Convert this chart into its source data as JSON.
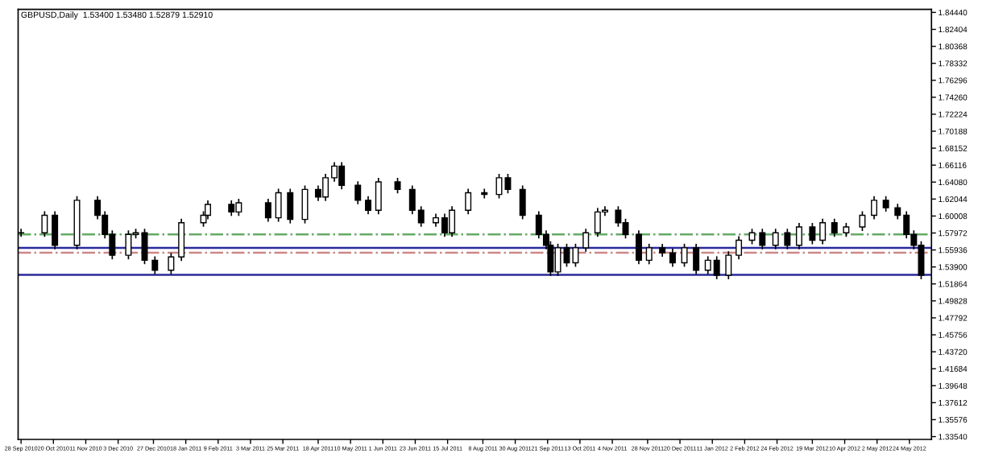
{
  "chart_data": {
    "type": "candlestick",
    "title": "GBPUSD,Daily  1.53400 1.53480 1.52879 1.52910",
    "x": [
      "2010-09-28",
      "2010-10-14",
      "2010-10-21",
      "2010-11-05",
      "2010-11-19",
      "2010-11-24",
      "2010-11-29",
      "2010-12-10",
      "2010-12-15",
      "2010-12-21",
      "2010-12-28",
      "2011-01-08",
      "2011-01-15",
      "2011-01-30",
      "2011-02-02",
      "2011-02-18",
      "2011-02-23",
      "2011-03-15",
      "2011-03-22",
      "2011-03-30",
      "2011-04-09",
      "2011-04-18",
      "2011-04-23",
      "2011-04-29",
      "2011-05-04",
      "2011-05-15",
      "2011-05-22",
      "2011-05-29",
      "2011-06-11",
      "2011-06-21",
      "2011-06-27",
      "2011-07-07",
      "2011-07-13",
      "2011-07-18",
      "2011-07-29",
      "2011-08-09",
      "2011-08-19",
      "2011-08-25",
      "2011-09-04",
      "2011-09-15",
      "2011-09-20",
      "2011-09-23",
      "2011-09-28",
      "2011-10-04",
      "2011-10-10",
      "2011-10-17",
      "2011-10-25",
      "2011-10-30",
      "2011-11-08",
      "2011-11-13",
      "2011-11-22",
      "2011-11-29",
      "2011-12-08",
      "2011-12-15",
      "2011-12-23",
      "2011-12-31",
      "2012-01-08",
      "2012-01-14",
      "2012-01-22",
      "2012-01-29",
      "2012-02-07",
      "2012-02-14",
      "2012-02-23",
      "2012-03-02",
      "2012-03-10",
      "2012-03-19",
      "2012-03-26",
      "2012-04-03",
      "2012-04-11",
      "2012-04-22",
      "2012-04-30",
      "2012-05-08",
      "2012-05-16",
      "2012-05-22",
      "2012-05-27",
      "2012-06-01"
    ],
    "ohlc": [
      [
        1.58,
        1.584,
        1.576,
        1.58
      ],
      [
        1.58,
        1.605,
        1.576,
        1.601
      ],
      [
        1.601,
        1.605,
        1.561,
        1.565
      ],
      [
        1.565,
        1.623,
        1.561,
        1.619
      ],
      [
        1.619,
        1.623,
        1.597,
        1.601
      ],
      [
        1.601,
        1.605,
        1.574,
        1.578
      ],
      [
        1.578,
        1.582,
        1.549,
        1.553
      ],
      [
        1.553,
        1.582,
        1.549,
        1.578
      ],
      [
        1.578,
        1.584,
        1.574,
        1.58
      ],
      [
        1.58,
        1.584,
        1.543,
        1.547
      ],
      [
        1.547,
        1.551,
        1.531,
        1.535
      ],
      [
        1.535,
        1.555,
        1.531,
        1.551
      ],
      [
        1.551,
        1.596,
        1.547,
        1.592
      ],
      [
        1.592,
        1.605,
        1.588,
        1.601
      ],
      [
        1.601,
        1.618,
        1.597,
        1.614
      ],
      [
        1.614,
        1.618,
        1.601,
        1.605
      ],
      [
        1.605,
        1.62,
        1.601,
        1.616
      ],
      [
        1.616,
        1.62,
        1.594,
        1.598
      ],
      [
        1.598,
        1.632,
        1.594,
        1.628
      ],
      [
        1.628,
        1.632,
        1.592,
        1.596
      ],
      [
        1.596,
        1.636,
        1.592,
        1.632
      ],
      [
        1.632,
        1.636,
        1.619,
        1.623
      ],
      [
        1.623,
        1.65,
        1.619,
        1.646
      ],
      [
        1.646,
        1.664,
        1.642,
        1.66
      ],
      [
        1.66,
        1.664,
        1.633,
        1.637
      ],
      [
        1.637,
        1.641,
        1.615,
        1.619
      ],
      [
        1.619,
        1.623,
        1.603,
        1.607
      ],
      [
        1.607,
        1.645,
        1.603,
        1.641
      ],
      [
        1.641,
        1.645,
        1.628,
        1.632
      ],
      [
        1.632,
        1.636,
        1.603,
        1.607
      ],
      [
        1.607,
        1.611,
        1.588,
        1.592
      ],
      [
        1.592,
        1.602,
        1.588,
        1.598
      ],
      [
        1.598,
        1.602,
        1.576,
        1.58
      ],
      [
        1.58,
        1.611,
        1.576,
        1.607
      ],
      [
        1.607,
        1.632,
        1.603,
        1.628
      ],
      [
        1.628,
        1.632,
        1.622,
        1.626
      ],
      [
        1.626,
        1.65,
        1.622,
        1.646
      ],
      [
        1.646,
        1.65,
        1.628,
        1.632
      ],
      [
        1.632,
        1.636,
        1.597,
        1.601
      ],
      [
        1.601,
        1.605,
        1.574,
        1.578
      ],
      [
        1.578,
        1.582,
        1.561,
        1.565
      ],
      [
        1.565,
        1.569,
        1.529,
        1.533
      ],
      [
        1.533,
        1.566,
        1.529,
        1.562
      ],
      [
        1.562,
        1.566,
        1.54,
        1.544
      ],
      [
        1.544,
        1.566,
        1.54,
        1.562
      ],
      [
        1.562,
        1.584,
        1.558,
        1.58
      ],
      [
        1.58,
        1.609,
        1.576,
        1.605
      ],
      [
        1.605,
        1.611,
        1.601,
        1.607
      ],
      [
        1.607,
        1.611,
        1.588,
        1.592
      ],
      [
        1.592,
        1.596,
        1.574,
        1.578
      ],
      [
        1.578,
        1.582,
        1.543,
        1.547
      ],
      [
        1.547,
        1.566,
        1.543,
        1.562
      ],
      [
        1.562,
        1.566,
        1.552,
        1.556
      ],
      [
        1.556,
        1.56,
        1.54,
        1.544
      ],
      [
        1.544,
        1.566,
        1.54,
        1.562
      ],
      [
        1.562,
        1.566,
        1.531,
        1.535
      ],
      [
        1.535,
        1.551,
        1.531,
        1.547
      ],
      [
        1.547,
        1.551,
        1.525,
        1.529
      ],
      [
        1.529,
        1.557,
        1.525,
        1.553
      ],
      [
        1.553,
        1.575,
        1.549,
        1.571
      ],
      [
        1.571,
        1.584,
        1.567,
        1.58
      ],
      [
        1.58,
        1.584,
        1.561,
        1.565
      ],
      [
        1.565,
        1.584,
        1.561,
        1.58
      ],
      [
        1.58,
        1.584,
        1.561,
        1.565
      ],
      [
        1.565,
        1.591,
        1.561,
        1.587
      ],
      [
        1.587,
        1.591,
        1.567,
        1.571
      ],
      [
        1.571,
        1.596,
        1.567,
        1.592
      ],
      [
        1.592,
        1.596,
        1.576,
        1.58
      ],
      [
        1.58,
        1.591,
        1.576,
        1.587
      ],
      [
        1.587,
        1.605,
        1.583,
        1.601
      ],
      [
        1.601,
        1.623,
        1.597,
        1.619
      ],
      [
        1.619,
        1.623,
        1.606,
        1.61
      ],
      [
        1.61,
        1.614,
        1.597,
        1.601
      ],
      [
        1.601,
        1.605,
        1.574,
        1.578
      ],
      [
        1.578,
        1.582,
        1.561,
        1.565
      ],
      [
        1.565,
        1.569,
        1.525,
        1.529
      ]
    ],
    "xlim": [
      "2010-09-26",
      "2012-06-08"
    ],
    "xticks": [
      {
        "value": "2010-09-28",
        "label": "28 Sep 2010"
      },
      {
        "value": "2010-10-20",
        "label": "20 Oct 2010"
      },
      {
        "value": "2010-11-11",
        "label": "11 Nov 2010"
      },
      {
        "value": "2010-12-03",
        "label": "3 Dec 2010"
      },
      {
        "value": "2010-12-27",
        "label": "27 Dec 2010"
      },
      {
        "value": "2011-01-18",
        "label": "18 Jan 2011"
      },
      {
        "value": "2011-02-09",
        "label": "9 Feb 2011"
      },
      {
        "value": "2011-03-03",
        "label": "3 Mar 2011"
      },
      {
        "value": "2011-03-25",
        "label": "25 Mar 2011"
      },
      {
        "value": "2011-04-18",
        "label": "18 Apr 2011"
      },
      {
        "value": "2011-05-10",
        "label": "10 May 2011"
      },
      {
        "value": "2011-06-01",
        "label": "1 Jun 2011"
      },
      {
        "value": "2011-06-23",
        "label": "23 Jun 2011"
      },
      {
        "value": "2011-07-15",
        "label": "15 Jul 2011"
      },
      {
        "value": "2011-08-08",
        "label": "8 Aug 2011"
      },
      {
        "value": "2011-08-30",
        "label": "30 Aug 2011"
      },
      {
        "value": "2011-09-21",
        "label": "21 Sep 2011"
      },
      {
        "value": "2011-10-13",
        "label": "13 Oct 2011"
      },
      {
        "value": "2011-11-04",
        "label": "4 Nov 2011"
      },
      {
        "value": "2011-11-28",
        "label": "28 Nov 2011"
      },
      {
        "value": "2011-12-20",
        "label": "20 Dec 2011"
      },
      {
        "value": "2012-01-11",
        "label": "11 Jan 2012"
      },
      {
        "value": "2012-02-02",
        "label": "2 Feb 2012"
      },
      {
        "value": "2012-02-24",
        "label": "24 Feb 2012"
      },
      {
        "value": "2012-03-19",
        "label": "19 Mar 2012"
      },
      {
        "value": "2012-04-10",
        "label": "10 Apr 2012"
      },
      {
        "value": "2012-05-02",
        "label": "2 May 2012"
      },
      {
        "value": "2012-05-24",
        "label": "24 May 2012"
      }
    ],
    "ylim": [
      1.332,
      1.848
    ],
    "yticks": [
      {
        "value": 1.3354,
        "label": "1.33540"
      },
      {
        "value": 1.35576,
        "label": "1.35576"
      },
      {
        "value": 1.37612,
        "label": "1.37612"
      },
      {
        "value": 1.39648,
        "label": "1.39648"
      },
      {
        "value": 1.41684,
        "label": "1.41684"
      },
      {
        "value": 1.4372,
        "label": "1.43720"
      },
      {
        "value": 1.45756,
        "label": "1.45756"
      },
      {
        "value": 1.47792,
        "label": "1.47792"
      },
      {
        "value": 1.49828,
        "label": "1.49828"
      },
      {
        "value": 1.51864,
        "label": "1.51864"
      },
      {
        "value": 1.539,
        "label": "1.53900"
      },
      {
        "value": 1.55936,
        "label": "1.55936"
      },
      {
        "value": 1.57972,
        "label": "1.57972"
      },
      {
        "value": 1.60008,
        "label": "1.60008"
      },
      {
        "value": 1.62044,
        "label": "1.62044"
      },
      {
        "value": 1.6408,
        "label": "1.64080"
      },
      {
        "value": 1.66116,
        "label": "1.66116"
      },
      {
        "value": 1.68152,
        "label": "1.68152"
      },
      {
        "value": 1.70188,
        "label": "1.70188"
      },
      {
        "value": 1.72224,
        "label": "1.72224"
      },
      {
        "value": 1.7426,
        "label": "1.74260"
      },
      {
        "value": 1.76296,
        "label": "1.76296"
      },
      {
        "value": 1.78332,
        "label": "1.78332"
      },
      {
        "value": 1.80368,
        "label": "1.80368"
      },
      {
        "value": 1.82404,
        "label": "1.82404"
      },
      {
        "value": 1.8444,
        "label": "1.84440"
      }
    ],
    "ref_lines": [
      {
        "axis": "y",
        "value": 1.578,
        "color": "#66aa66",
        "line_style": "dashdot"
      },
      {
        "axis": "y",
        "value": 1.5618,
        "color": "#2a2a9a",
        "line_style": "solid"
      },
      {
        "axis": "y",
        "value": 1.556,
        "color": "#cc8888",
        "line_style": "dashdot"
      },
      {
        "axis": "y",
        "value": 1.5294,
        "color": "#2a2a9a",
        "line_style": "solid"
      }
    ],
    "grid": false,
    "legend": false
  }
}
